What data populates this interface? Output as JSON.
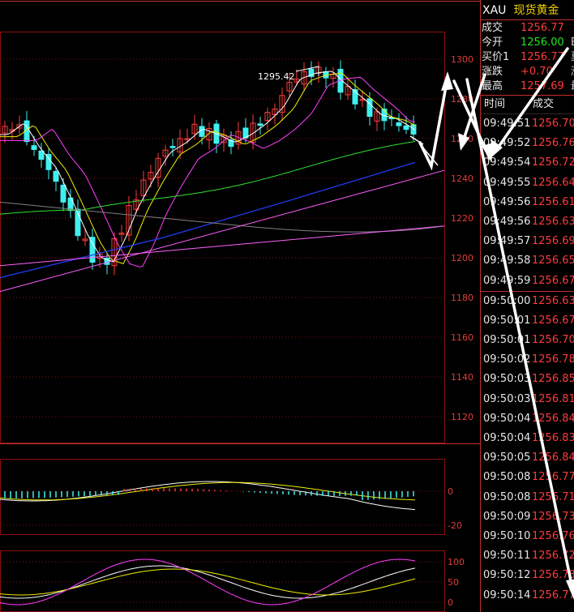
{
  "quote_panel": {
    "symbol": "XAU",
    "name": "现货黄金",
    "rows": [
      {
        "label": "成交",
        "value": "1256.77",
        "color": "#ff3b3b",
        "edge": ""
      },
      {
        "label": "今开",
        "value": "1256.00",
        "color": "#1ee81e",
        "edge": "B"
      },
      {
        "label": "买价1",
        "value": "1256.77",
        "color": "#ff3b3b",
        "edge": "莫"
      },
      {
        "label": "涨跌",
        "value": "+0.70",
        "color": "#ff3b3b",
        "edge": "涨"
      },
      {
        "label": "最高",
        "value": "1257.69",
        "color": "#ff3b3b",
        "edge": "最"
      }
    ],
    "ticks_header": {
      "time": "时间",
      "price": "成交"
    },
    "ticks": [
      {
        "time": "09:49:51",
        "price": "1256.70"
      },
      {
        "time": "09:49:52",
        "price": "1256.76"
      },
      {
        "time": "09:49:54",
        "price": "1256.72"
      },
      {
        "time": "09:49:55",
        "price": "1256.64"
      },
      {
        "time": "09:49:56",
        "price": "1256.61"
      },
      {
        "time": "09:49:56",
        "price": "1256.63"
      },
      {
        "time": "09:49:57",
        "price": "1256.69"
      },
      {
        "time": "09:49:58",
        "price": "1256.65"
      },
      {
        "time": "09:49:59",
        "price": "1256.67"
      },
      {
        "time": "09:50:00",
        "price": "1256.63"
      },
      {
        "time": "09:50:01",
        "price": "1256.67"
      },
      {
        "time": "09:50:01",
        "price": "1256.70"
      },
      {
        "time": "09:50:02",
        "price": "1256.78"
      },
      {
        "time": "09:50:03",
        "price": "1256.85"
      },
      {
        "time": "09:50:03",
        "price": "1256.81"
      },
      {
        "time": "09:50:04",
        "price": "1256.84"
      },
      {
        "time": "09:50:04",
        "price": "1256.83"
      },
      {
        "time": "09:50:05",
        "price": "1256.84"
      },
      {
        "time": "09:50:08",
        "price": "1256.77"
      },
      {
        "time": "09:50:08",
        "price": "1256.71"
      },
      {
        "time": "09:50:09",
        "price": "1256.73"
      },
      {
        "time": "09:50:10",
        "price": "1256.76"
      },
      {
        "time": "09:50:11",
        "price": "1256.72"
      },
      {
        "time": "09:50:12",
        "price": "1256.78"
      },
      {
        "time": "09:50:14",
        "price": "1256.77"
      }
    ]
  },
  "main_chart": {
    "y_ticks": [
      "1300",
      "1280",
      "1260",
      "1240",
      "1220",
      "1200",
      "1180",
      "1160",
      "1140",
      "1120"
    ],
    "high_annotation": "1295.42",
    "colors": {
      "up": "#ff3b3b",
      "down": "#40f0f0",
      "ma5": "#ffffff",
      "ma10": "#f0f000",
      "ma20": "#ff40ff",
      "ma30": "#30e030",
      "ma60": "#2040ff",
      "ma120": "#808080",
      "trend": "#ff60ff",
      "grid": "#8a1010"
    }
  },
  "macd_panel": {
    "y_ticks": [
      "0",
      "-20"
    ]
  },
  "kdj_panel": {
    "y_ticks": [
      "100",
      "50",
      "0"
    ]
  }
}
